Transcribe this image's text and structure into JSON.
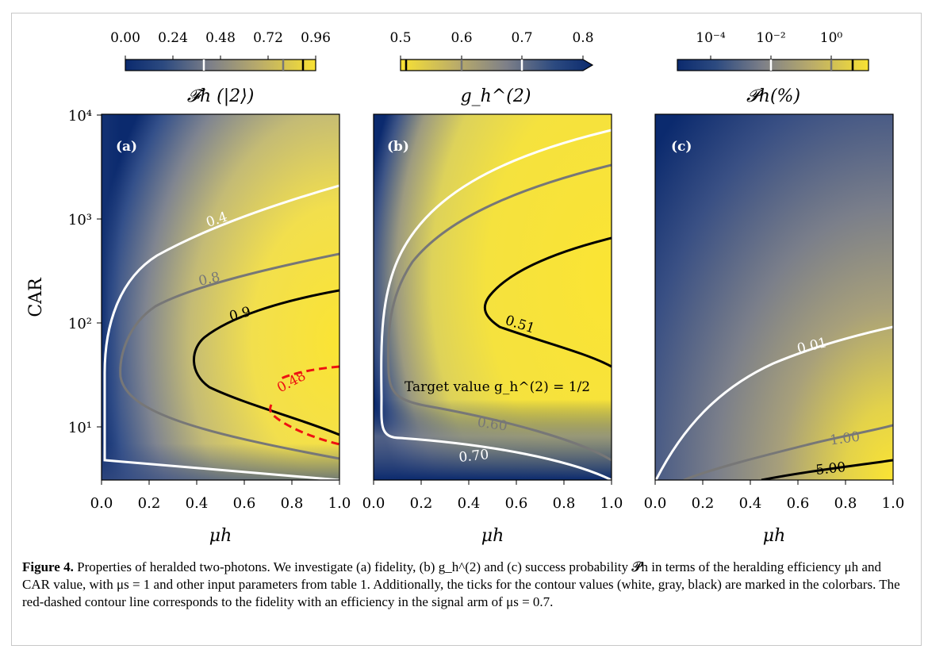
{
  "panels": [
    {
      "label": "(a)",
      "colorbar": {
        "ticks": [
          "0.00",
          "0.24",
          "0.48",
          "0.72",
          "0.96"
        ],
        "label": "𝓕h (|2⟩)",
        "reversed": false,
        "markers": [
          {
            "value": 0.4,
            "color": "white"
          },
          {
            "value": 0.8,
            "color": "gray"
          },
          {
            "value": 0.9,
            "color": "black"
          }
        ]
      },
      "contours": [
        {
          "label": "0.4",
          "color": "#ffffff",
          "dashed": false
        },
        {
          "label": "0.8",
          "color": "#777777",
          "dashed": false
        },
        {
          "label": "0.9",
          "color": "#000000",
          "dashed": false
        },
        {
          "label": "0.48",
          "color": "#ee1111",
          "dashed": true
        }
      ],
      "annotation": ""
    },
    {
      "label": "(b)",
      "colorbar": {
        "ticks": [
          "0.5",
          "0.6",
          "0.7",
          "0.8"
        ],
        "label": "g_h^(2)",
        "reversed": true,
        "markers": [
          {
            "value": 0.51,
            "color": "black"
          },
          {
            "value": 0.6,
            "color": "gray"
          },
          {
            "value": 0.7,
            "color": "white"
          }
        ]
      },
      "contours": [
        {
          "label": "0.51",
          "color": "#000000",
          "dashed": false
        },
        {
          "label": "0.60",
          "color": "#777777",
          "dashed": false
        },
        {
          "label": "0.70",
          "color": "#ffffff",
          "dashed": false
        }
      ],
      "annotation": "Target value g_h^(2) = 1/2"
    },
    {
      "label": "(c)",
      "colorbar": {
        "ticks": [
          "10⁻⁴",
          "10⁻²",
          "10⁰"
        ],
        "label": "𝓟h(%)",
        "reversed": false,
        "markers": [
          {
            "value": 0.01,
            "color": "white"
          },
          {
            "value": 1.0,
            "color": "gray"
          },
          {
            "value": 5.0,
            "color": "black"
          }
        ]
      },
      "contours": [
        {
          "label": "0.01",
          "color": "#ffffff",
          "dashed": false
        },
        {
          "label": "1.00",
          "color": "#777777",
          "dashed": false
        },
        {
          "label": "5.00",
          "color": "#000000",
          "dashed": false
        }
      ],
      "annotation": ""
    }
  ],
  "axes": {
    "ylabel": "CAR",
    "xlabel": "μh",
    "xticks": [
      "0.0",
      "0.2",
      "0.4",
      "0.6",
      "0.8",
      "1.0"
    ],
    "yticks": [
      "10¹",
      "10²",
      "10³",
      "10⁴"
    ],
    "colors": {
      "dark": "#0b2a6e",
      "mid": "#7e8088",
      "bright": "#f9e233"
    }
  },
  "caption": {
    "figure_label": "Figure 4.",
    "text": "Properties of heralded two-photons. We investigate (a) fidelity, (b) g_h^(2) and (c) success probability 𝓟h in terms of the heralding efficiency μh and CAR value, with μs = 1 and other input parameters from table 1. Additionally, the ticks for the contour values (white, gray, black) are marked in the colorbars. The red-dashed contour line corresponds to the fidelity with an efficiency in the signal arm of μs = 0.7."
  }
}
